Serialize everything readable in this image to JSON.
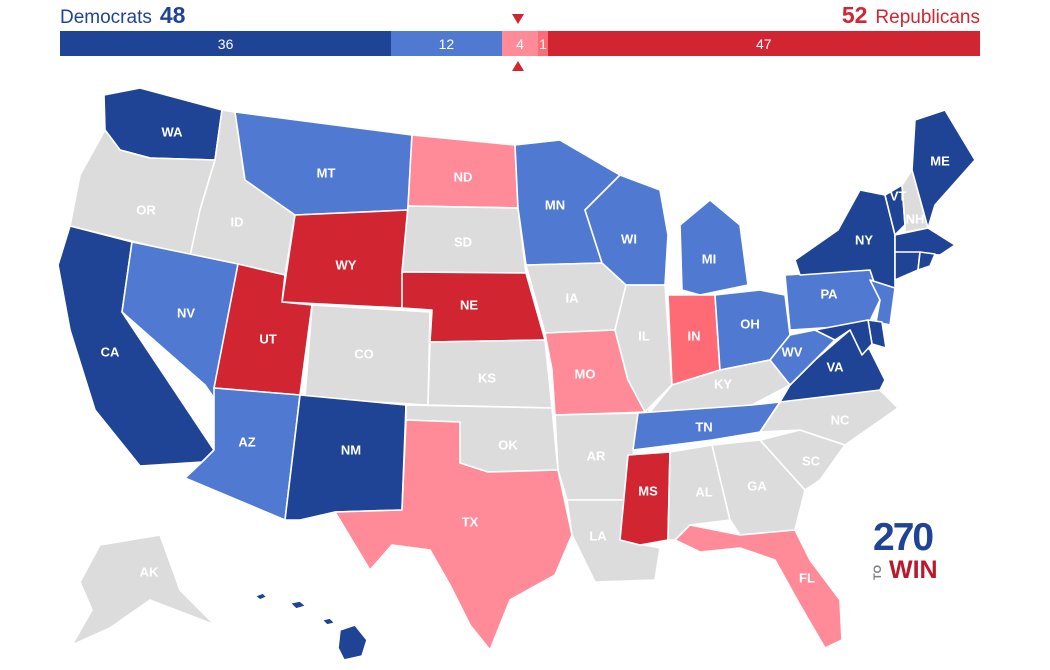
{
  "header": {
    "dem_name": "Democrats",
    "dem_total": "48",
    "rep_total": "52",
    "rep_name": "Republicans"
  },
  "bar": {
    "segments": [
      {
        "id": "safe-dem",
        "value": 36,
        "label": "36",
        "color": "#1f4496"
      },
      {
        "id": "lean-dem",
        "value": 12,
        "label": "12",
        "color": "#5079d2"
      },
      {
        "id": "lean-rep",
        "value": 4,
        "label": "4",
        "color": "#ff8b98"
      },
      {
        "id": "tilt-rep",
        "value": 1,
        "label": "1",
        "color": "#ff6b75"
      },
      {
        "id": "safe-rep",
        "value": 47,
        "label": "47",
        "color": "#d22532"
      }
    ]
  },
  "colors": {
    "safe_dem": "#1f4496",
    "lean_dem": "#5079d2",
    "lean_rep": "#ff8b98",
    "tilt_rep": "#ff6b75",
    "safe_rep": "#d22532",
    "none": "#dcdcdc"
  },
  "states": [
    {
      "code": "WA",
      "label": "WA",
      "status": "safe_dem"
    },
    {
      "code": "OR",
      "label": "OR",
      "status": "none"
    },
    {
      "code": "CA",
      "label": "CA",
      "status": "safe_dem"
    },
    {
      "code": "ID",
      "label": "ID",
      "status": "none"
    },
    {
      "code": "NV",
      "label": "NV",
      "status": "lean_dem"
    },
    {
      "code": "MT",
      "label": "MT",
      "status": "lean_dem"
    },
    {
      "code": "WY",
      "label": "WY",
      "status": "safe_rep"
    },
    {
      "code": "UT",
      "label": "UT",
      "status": "safe_rep"
    },
    {
      "code": "AZ",
      "label": "AZ",
      "status": "lean_dem"
    },
    {
      "code": "CO",
      "label": "CO",
      "status": "none"
    },
    {
      "code": "NM",
      "label": "NM",
      "status": "safe_dem"
    },
    {
      "code": "ND",
      "label": "ND",
      "status": "lean_rep"
    },
    {
      "code": "SD",
      "label": "SD",
      "status": "none"
    },
    {
      "code": "NE",
      "label": "NE",
      "status": "safe_rep"
    },
    {
      "code": "KS",
      "label": "KS",
      "status": "none"
    },
    {
      "code": "OK",
      "label": "OK",
      "status": "none"
    },
    {
      "code": "TX",
      "label": "TX",
      "status": "lean_rep"
    },
    {
      "code": "MN",
      "label": "MN",
      "status": "lean_dem"
    },
    {
      "code": "IA",
      "label": "IA",
      "status": "none"
    },
    {
      "code": "MO",
      "label": "MO",
      "status": "lean_rep"
    },
    {
      "code": "AR",
      "label": "AR",
      "status": "none"
    },
    {
      "code": "LA",
      "label": "LA",
      "status": "none"
    },
    {
      "code": "WI",
      "label": "WI",
      "status": "lean_dem"
    },
    {
      "code": "IL",
      "label": "IL",
      "status": "none"
    },
    {
      "code": "MI",
      "label": "MI",
      "status": "lean_dem"
    },
    {
      "code": "IN",
      "label": "IN",
      "status": "tilt_rep"
    },
    {
      "code": "OH",
      "label": "OH",
      "status": "lean_dem"
    },
    {
      "code": "KY",
      "label": "KY",
      "status": "none"
    },
    {
      "code": "TN",
      "label": "TN",
      "status": "lean_dem"
    },
    {
      "code": "MS",
      "label": "MS",
      "status": "safe_rep"
    },
    {
      "code": "AL",
      "label": "AL",
      "status": "none"
    },
    {
      "code": "GA",
      "label": "GA",
      "status": "none"
    },
    {
      "code": "FL",
      "label": "FL",
      "status": "lean_rep"
    },
    {
      "code": "SC",
      "label": "SC",
      "status": "none"
    },
    {
      "code": "NC",
      "label": "NC",
      "status": "none"
    },
    {
      "code": "VA",
      "label": "VA",
      "status": "safe_dem"
    },
    {
      "code": "WV",
      "label": "WV",
      "status": "lean_dem"
    },
    {
      "code": "PA",
      "label": "PA",
      "status": "lean_dem"
    },
    {
      "code": "NY",
      "label": "NY",
      "status": "safe_dem"
    },
    {
      "code": "VT",
      "label": "VT",
      "status": "safe_dem"
    },
    {
      "code": "NH",
      "label": "NH",
      "status": "none"
    },
    {
      "code": "ME",
      "label": "ME",
      "status": "safe_dem"
    },
    {
      "code": "MA",
      "label": "",
      "status": "safe_dem"
    },
    {
      "code": "CT",
      "label": "",
      "status": "safe_dem"
    },
    {
      "code": "RI",
      "label": "",
      "status": "safe_dem"
    },
    {
      "code": "NJ",
      "label": "",
      "status": "lean_dem"
    },
    {
      "code": "DE",
      "label": "",
      "status": "safe_dem"
    },
    {
      "code": "MD",
      "label": "",
      "status": "safe_dem"
    },
    {
      "code": "AK",
      "label": "AK",
      "status": "none"
    },
    {
      "code": "HI",
      "label": "HI",
      "status": "safe_dem"
    }
  ],
  "logo": {
    "number": "270",
    "to": "TO",
    "win": "WIN"
  }
}
